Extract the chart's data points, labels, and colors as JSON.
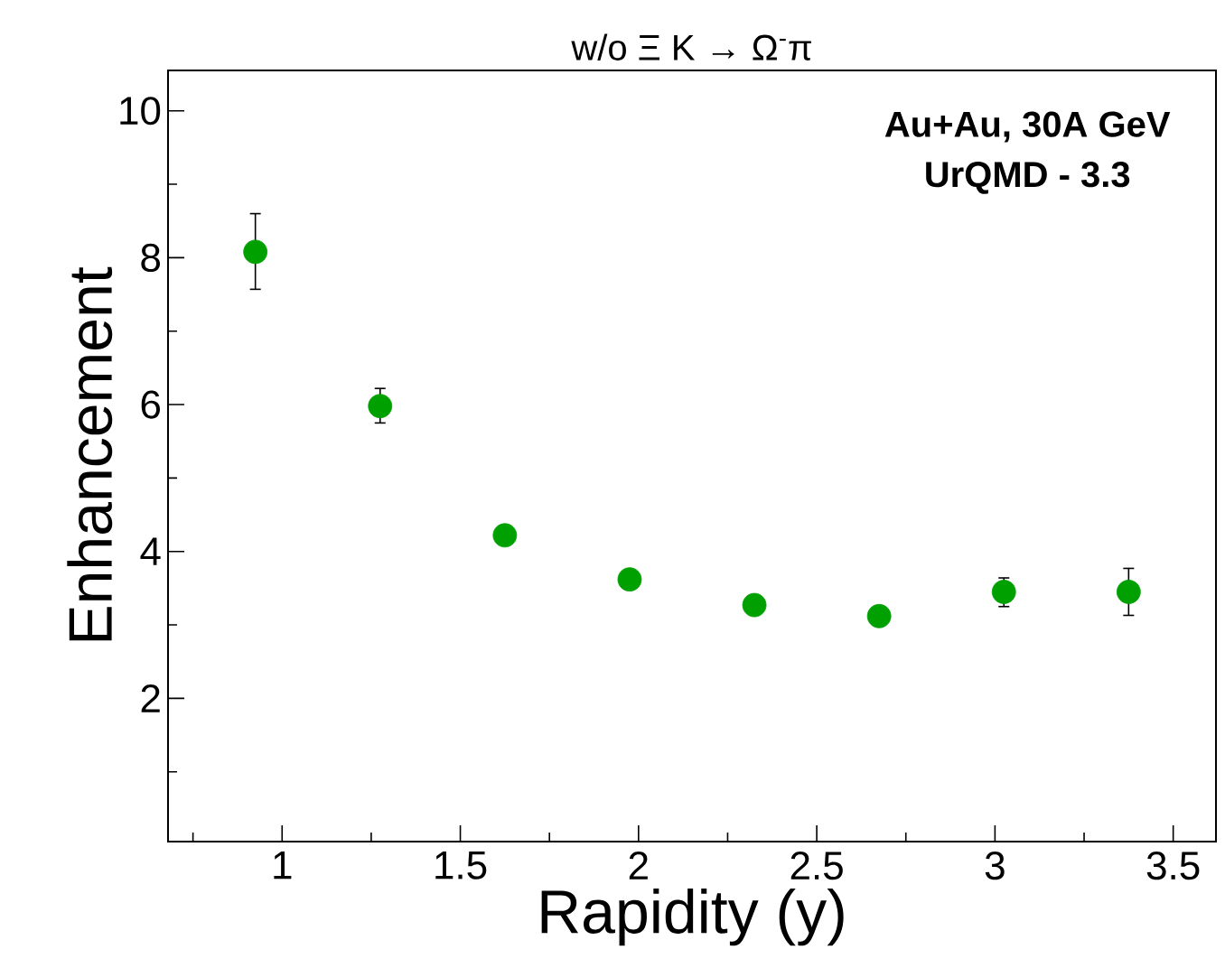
{
  "chart_data": {
    "type": "scatter",
    "title": "w/o Ξ K → Ω$^{-}$π",
    "xlabel": "Rapidity (y)",
    "ylabel": "Enhancement",
    "annotations": [
      "Au+Au, 30A GeV",
      "UrQMD - 3.3"
    ],
    "x": [
      0.925,
      1.275,
      1.625,
      1.975,
      2.325,
      2.675,
      3.025,
      3.375
    ],
    "values": [
      8.08,
      5.98,
      4.22,
      3.62,
      3.27,
      3.12,
      3.45,
      3.45
    ],
    "errors": [
      [
        7.57,
        8.6
      ],
      [
        5.75,
        6.22
      ],
      null,
      null,
      null,
      null,
      [
        3.25,
        3.64
      ],
      [
        3.13,
        3.77
      ]
    ],
    "color": "#00a000",
    "xlim": [
      0.68,
      3.62
    ],
    "ylim": [
      0.05,
      10.55
    ],
    "xticks": [
      {
        "value": 0.75,
        "label": null
      },
      1,
      {
        "value": 1.25,
        "label": null
      },
      1.5,
      {
        "value": 1.75,
        "label": null
      },
      2,
      {
        "value": 2.25,
        "label": null
      },
      2.5,
      {
        "value": 2.75,
        "label": null
      },
      3,
      {
        "value": 3.25,
        "label": null
      },
      3.5
    ],
    "yticks": [
      {
        "value": 1,
        "label": null
      },
      2,
      {
        "value": 3,
        "label": null
      },
      4,
      {
        "value": 5,
        "label": null
      },
      6,
      {
        "value": 7,
        "label": null
      },
      8,
      {
        "value": 9,
        "label": null
      },
      10
    ]
  }
}
